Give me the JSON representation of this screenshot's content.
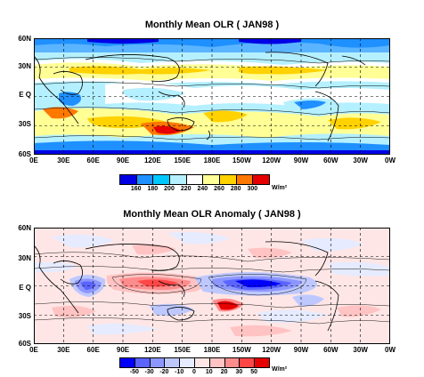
{
  "panels": [
    {
      "title": "Monthly Mean OLR ( JAN98 )",
      "lat_labels": [
        "60N",
        "30N",
        "E Q",
        "30S",
        "60S"
      ],
      "lon_labels": [
        "0E",
        "30E",
        "60E",
        "90E",
        "120E",
        "150E",
        "180E",
        "150W",
        "120W",
        "90W",
        "60W",
        "30W",
        "0W"
      ],
      "colorbar": {
        "labels": [
          "160",
          "180",
          "200",
          "220",
          "240",
          "260",
          "280",
          "300"
        ],
        "unit": "W/m²",
        "colors": [
          "#0000e6",
          "#1e90ff",
          "#00c8ff",
          "#b4f0ff",
          "#ffffff",
          "#ffff96",
          "#ffd200",
          "#ff7800",
          "#e60000"
        ]
      }
    },
    {
      "title": "Monthly Mean OLR Anomaly ( JAN98 )",
      "lat_labels": [
        "60N",
        "30N",
        "E Q",
        "30S",
        "60S"
      ],
      "lon_labels": [
        "0E",
        "30E",
        "60E",
        "90E",
        "120E",
        "150E",
        "180E",
        "150W",
        "120W",
        "90W",
        "60W",
        "30W",
        "0W"
      ],
      "colorbar": {
        "labels": [
          "-50",
          "-30",
          "-20",
          "-10",
          "0",
          "10",
          "20",
          "30",
          "50"
        ],
        "unit": "W/m²",
        "colors": [
          "#0000ff",
          "#5a64ff",
          "#8c96ff",
          "#bec8ff",
          "#e6ebff",
          "#ffe6e6",
          "#ffc3c3",
          "#ff8c8c",
          "#ff4646",
          "#e60000"
        ]
      }
    }
  ]
}
